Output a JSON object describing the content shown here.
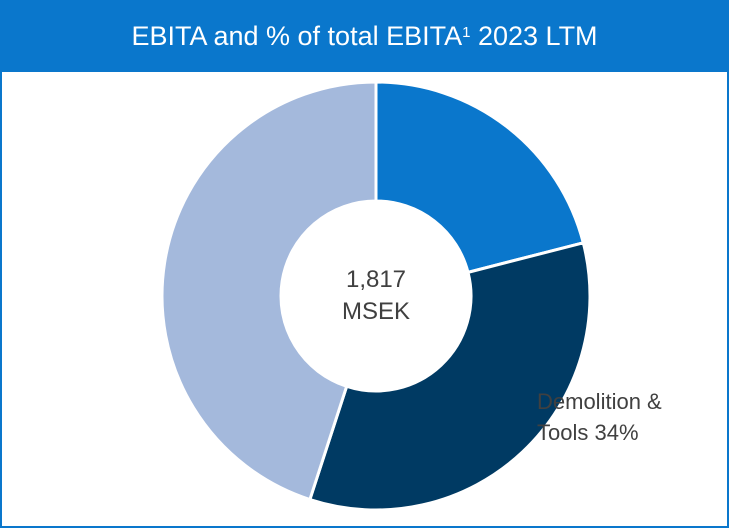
{
  "chart_data": {
    "type": "donut",
    "title": "EBITA and % of total EBITA",
    "title_footnote": "1",
    "period": "2023 LTM",
    "center_labels": [
      "1,817",
      "MSEK"
    ],
    "categories": [
      null,
      "Demolition & Tools",
      null
    ],
    "values": [
      21,
      34,
      45
    ],
    "value_labels": [
      null,
      "34%",
      null
    ],
    "colors": [
      "#0a77cc",
      "#003a63",
      "#a4b9dc"
    ]
  }
}
